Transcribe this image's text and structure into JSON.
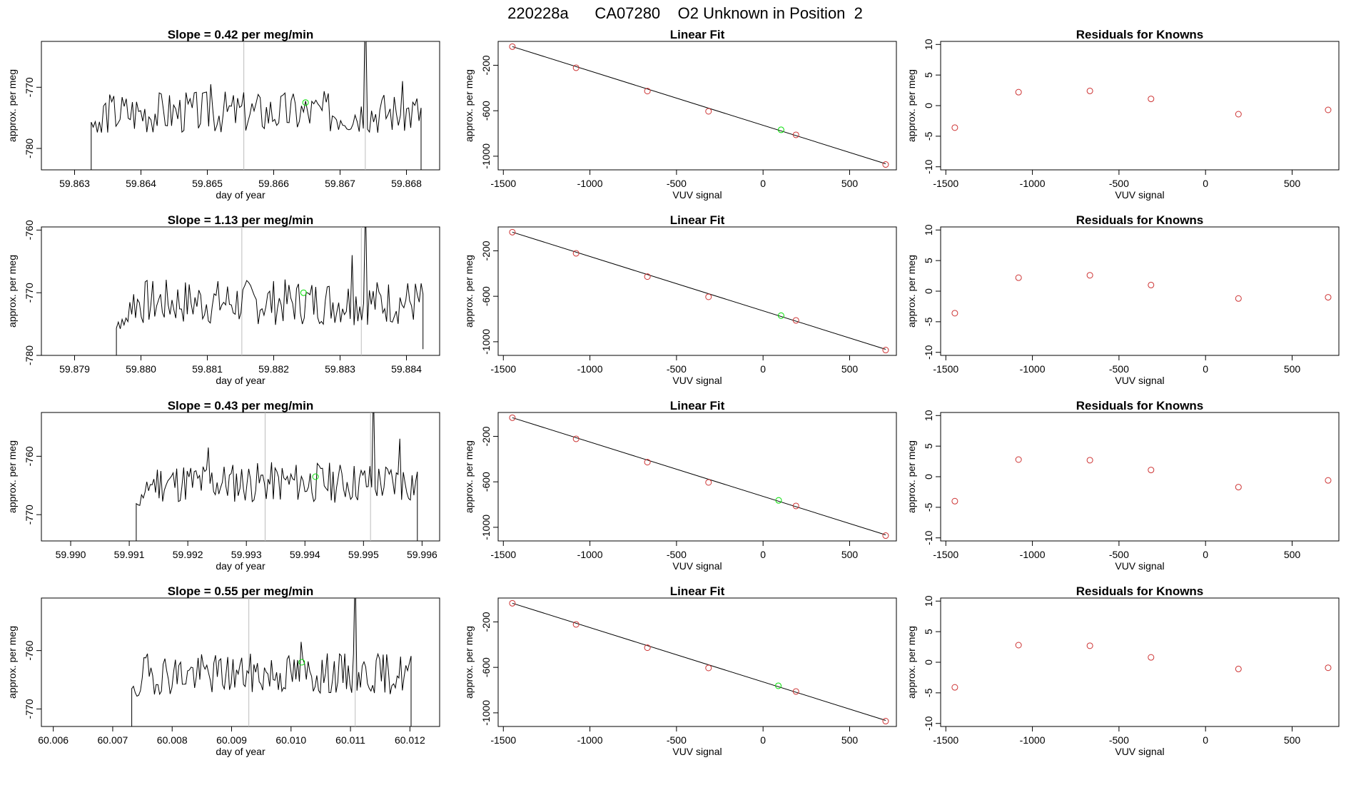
{
  "main_title": "220228a      CA07280    O2 Unknown in Position  2",
  "colors": {
    "line": "#000000",
    "known": "#cd3333",
    "unknown": "#00dd00",
    "marker": "#bdbdbd"
  },
  "chart_data": [
    {
      "type": "line",
      "title": "Slope =  0.42  per meg/min",
      "xlabel": "day of year",
      "ylabel": "approx. per meg",
      "xlim": [
        59.8625,
        59.8685
      ],
      "ylim": [
        -783.5,
        -762.5
      ],
      "xticks": [
        "59.863",
        "59.864",
        "59.865",
        "59.866",
        "59.867",
        "59.868"
      ],
      "yticks": [
        "-780",
        "-770"
      ],
      "markers_x": [
        59.86555,
        59.86738
      ],
      "trace": {
        "x_start": 59.86325,
        "x_end": 59.86822,
        "base": -774,
        "amp": 2.2,
        "seed": 3,
        "start_level": -790,
        "end_level": -790,
        "spikes": [
          [
            59.86738,
            -755
          ],
          [
            59.86505,
            -769.5
          ],
          [
            59.86795,
            -769
          ]
        ]
      },
      "highlight": {
        "x": 59.86648,
        "y": -772.5
      }
    },
    {
      "type": "line",
      "title": "Slope =  1.13  per meg/min",
      "xlabel": "day of year",
      "ylabel": "approx. per meg",
      "xlim": [
        59.8785,
        59.8845
      ],
      "ylim": [
        -780,
        -759.5
      ],
      "xticks": [
        "59.879",
        "59.880",
        "59.881",
        "59.882",
        "59.883",
        "59.884"
      ],
      "yticks": [
        "-780",
        "-770",
        "-760"
      ],
      "markers_x": [
        59.88152,
        59.88332
      ],
      "trace": {
        "x_start": 59.87963,
        "x_end": 59.88425,
        "base": -771.5,
        "amp": 2.3,
        "seed": 7,
        "start_level": -780,
        "end_level": -779,
        "spikes": [
          [
            59.88338,
            -755
          ],
          [
            59.88318,
            -764
          ]
        ]
      },
      "highlight": {
        "x": 59.88245,
        "y": -770
      }
    },
    {
      "type": "line",
      "title": "Slope =  0.43  per meg/min",
      "xlabel": "day of year",
      "ylabel": "approx. per meg",
      "xlim": [
        59.9895,
        59.9963
      ],
      "ylim": [
        -774.5,
        -752.5
      ],
      "xticks": [
        "59.990",
        "59.991",
        "59.992",
        "59.993",
        "59.994",
        "59.995",
        "59.996"
      ],
      "yticks": [
        "-770",
        "-760"
      ],
      "markers_x": [
        59.99332,
        59.99512
      ],
      "trace": {
        "x_start": 59.99112,
        "x_end": 59.99592,
        "base": -764.5,
        "amp": 2.2,
        "seed": 11,
        "start_level": -776,
        "end_level": -776,
        "spikes": [
          [
            59.99518,
            -748
          ],
          [
            59.99562,
            -757
          ],
          [
            59.99235,
            -758.5
          ]
        ]
      },
      "highlight": {
        "x": 59.99418,
        "y": -763.5
      }
    },
    {
      "type": "line",
      "title": "Slope =  0.55  per meg/min",
      "xlabel": "day of year",
      "ylabel": "approx. per meg",
      "xlim": [
        60.0058,
        60.0125
      ],
      "ylim": [
        -773,
        -751
      ],
      "xticks": [
        "60.006",
        "60.007",
        "60.008",
        "60.009",
        "60.010",
        "60.011",
        "60.012"
      ],
      "yticks": [
        "-770",
        "-760"
      ],
      "markers_x": [
        60.00929,
        60.01108
      ],
      "trace": {
        "x_start": 60.00732,
        "x_end": 60.01202,
        "base": -764,
        "amp": 2.2,
        "seed": 19,
        "start_level": -776,
        "end_level": -775,
        "spikes": [
          [
            60.01108,
            -745
          ],
          [
            60.01018,
            -758.5
          ]
        ]
      },
      "highlight": {
        "x": 60.01018,
        "y": -762
      }
    },
    {
      "type": "scatter",
      "title": "Linear Fit",
      "xlabel": "VUV signal",
      "ylabel": "approx. per meg",
      "xlim": [
        -1530,
        770
      ],
      "ylim": [
        -1120,
        10
      ],
      "xticks": [
        -1500,
        -1000,
        -500,
        0,
        500
      ],
      "yticks": [
        -1000,
        -600,
        -200
      ],
      "knowns": [
        [
          -1448,
          -36
        ],
        [
          -1080,
          -222
        ],
        [
          -668,
          -427
        ],
        [
          -315,
          -605
        ],
        [
          190,
          -812
        ],
        [
          708,
          -1073
        ]
      ],
      "unknown": [
        104,
        -768
      ],
      "fit": {
        "slope": -0.478,
        "intercept": -728
      }
    },
    {
      "type": "scatter",
      "title": "Linear Fit",
      "xlabel": "VUV signal",
      "ylabel": "approx. per meg",
      "xlim": [
        -1530,
        770
      ],
      "ylim": [
        -1120,
        10
      ],
      "xticks": [
        -1500,
        -1000,
        -500,
        0,
        500
      ],
      "yticks": [
        -1000,
        -600,
        -200
      ],
      "knowns": [
        [
          -1448,
          -36
        ],
        [
          -1080,
          -222
        ],
        [
          -668,
          -427
        ],
        [
          -315,
          -605
        ],
        [
          190,
          -812
        ],
        [
          708,
          -1073
        ]
      ],
      "unknown": [
        104,
        -770
      ],
      "fit": {
        "slope": -0.478,
        "intercept": -728
      }
    },
    {
      "type": "scatter",
      "title": "Linear Fit",
      "xlabel": "VUV signal",
      "ylabel": "approx. per meg",
      "xlim": [
        -1530,
        770
      ],
      "ylim": [
        -1120,
        10
      ],
      "xticks": [
        -1500,
        -1000,
        -500,
        0,
        500
      ],
      "yticks": [
        -1000,
        -600,
        -200
      ],
      "knowns": [
        [
          -1448,
          -36
        ],
        [
          -1080,
          -222
        ],
        [
          -668,
          -427
        ],
        [
          -315,
          -605
        ],
        [
          190,
          -812
        ],
        [
          708,
          -1073
        ]
      ],
      "unknown": [
        90,
        -763
      ],
      "fit": {
        "slope": -0.478,
        "intercept": -728
      }
    },
    {
      "type": "scatter",
      "title": "Linear Fit",
      "xlabel": "VUV signal",
      "ylabel": "approx. per meg",
      "xlim": [
        -1530,
        770
      ],
      "ylim": [
        -1120,
        10
      ],
      "xticks": [
        -1500,
        -1000,
        -500,
        0,
        500
      ],
      "yticks": [
        -1000,
        -600,
        -200
      ],
      "knowns": [
        [
          -1448,
          -36
        ],
        [
          -1080,
          -222
        ],
        [
          -668,
          -427
        ],
        [
          -315,
          -605
        ],
        [
          190,
          -812
        ],
        [
          708,
          -1073
        ]
      ],
      "unknown": [
        88,
        -762
      ],
      "fit": {
        "slope": -0.478,
        "intercept": -728
      }
    },
    {
      "type": "scatter",
      "title": "Residuals for Knowns",
      "xlabel": "VUV signal",
      "ylabel": "approx. per meg",
      "xlim": [
        -1530,
        770
      ],
      "ylim": [
        -10.5,
        10.5
      ],
      "xticks": [
        -1500,
        -1000,
        -500,
        0,
        500
      ],
      "yticks": [
        -10,
        -5,
        0,
        5,
        10
      ],
      "points": [
        [
          -1448,
          -3.6
        ],
        [
          -1080,
          2.2
        ],
        [
          -668,
          2.4
        ],
        [
          -315,
          1.1
        ],
        [
          190,
          -1.4
        ],
        [
          708,
          -0.7
        ]
      ]
    },
    {
      "type": "scatter",
      "title": "Residuals for Knowns",
      "xlabel": "VUV signal",
      "ylabel": "approx. per meg",
      "xlim": [
        -1530,
        770
      ],
      "ylim": [
        -10.5,
        10.5
      ],
      "xticks": [
        -1500,
        -1000,
        -500,
        0,
        500
      ],
      "yticks": [
        -10,
        -5,
        0,
        5,
        10
      ],
      "points": [
        [
          -1448,
          -3.6
        ],
        [
          -1080,
          2.2
        ],
        [
          -668,
          2.6
        ],
        [
          -315,
          1.0
        ],
        [
          190,
          -1.2
        ],
        [
          708,
          -1.0
        ]
      ]
    },
    {
      "type": "scatter",
      "title": "Residuals for Knowns",
      "xlabel": "VUV signal",
      "ylabel": "approx. per meg",
      "xlim": [
        -1530,
        770
      ],
      "ylim": [
        -10.5,
        10.5
      ],
      "xticks": [
        -1500,
        -1000,
        -500,
        0,
        500
      ],
      "yticks": [
        -10,
        -5,
        0,
        5,
        10
      ],
      "points": [
        [
          -1448,
          -4.0
        ],
        [
          -1080,
          2.8
        ],
        [
          -668,
          2.7
        ],
        [
          -315,
          1.1
        ],
        [
          190,
          -1.7
        ],
        [
          708,
          -0.6
        ]
      ]
    },
    {
      "type": "scatter",
      "title": "Residuals for Knowns",
      "xlabel": "VUV signal",
      "ylabel": "approx. per meg",
      "xlim": [
        -1530,
        770
      ],
      "ylim": [
        -10.5,
        10.5
      ],
      "xticks": [
        -1500,
        -1000,
        -500,
        0,
        500
      ],
      "yticks": [
        -10,
        -5,
        0,
        5,
        10
      ],
      "points": [
        [
          -1448,
          -4.1
        ],
        [
          -1080,
          2.8
        ],
        [
          -668,
          2.7
        ],
        [
          -315,
          0.8
        ],
        [
          190,
          -1.1
        ],
        [
          708,
          -0.9
        ]
      ]
    }
  ]
}
